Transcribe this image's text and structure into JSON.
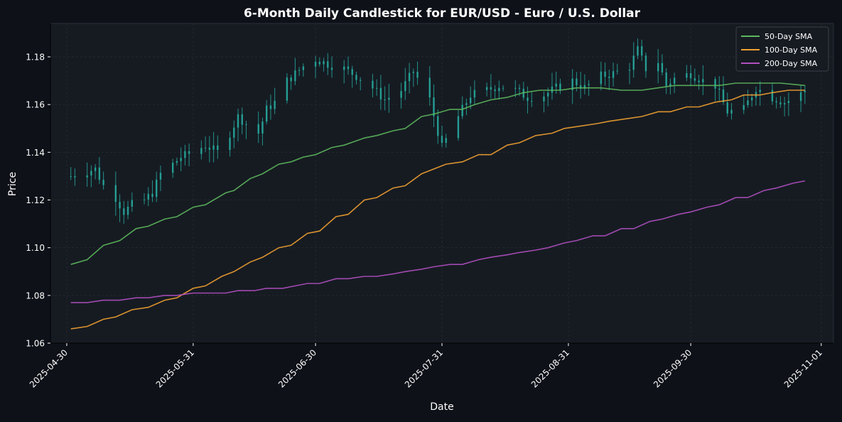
{
  "chart_data": {
    "type": "candlestick",
    "title": "6-Month Daily Candlestick for EUR/USD - Euro / U.S. Dollar",
    "xlabel": "Date",
    "ylabel": "Price",
    "xlim": [
      "2025-04-26",
      "2025-11-04"
    ],
    "ylim": [
      1.06,
      1.194
    ],
    "x_ticks": [
      "2025-04-30",
      "2025-05-31",
      "2025-06-30",
      "2025-07-31",
      "2025-08-31",
      "2025-09-30",
      "2025-11-01"
    ],
    "y_ticks": [
      1.06,
      1.08,
      1.1,
      1.12,
      1.14,
      1.16,
      1.18
    ],
    "y_tick_labels": [
      "1.06",
      "1.08",
      "1.10",
      "1.12",
      "1.14",
      "1.16",
      "1.18"
    ],
    "grid": true,
    "legend_position": "top-right",
    "colors": {
      "background": "#0e1118",
      "plot_background": "#161b22",
      "candle": "#26a69a",
      "sma50": "#5cb85c",
      "sma100": "#f0a030",
      "sma200": "#b04fc0",
      "text": "#ffffff"
    },
    "candles_start": "2025-05-01",
    "candles_end": "2025-10-28",
    "candles_close_path": [
      [
        "2025-05-01",
        1.13
      ],
      [
        "2025-05-07",
        1.133
      ],
      [
        "2025-05-09",
        1.126
      ],
      [
        "2025-05-12",
        1.121
      ],
      [
        "2025-05-14",
        1.115
      ],
      [
        "2025-05-16",
        1.118
      ],
      [
        "2025-05-19",
        1.12
      ],
      [
        "2025-05-21",
        1.123
      ],
      [
        "2025-05-23",
        1.131
      ],
      [
        "2025-05-26",
        1.135
      ],
      [
        "2025-05-28",
        1.138
      ],
      [
        "2025-05-31",
        1.14
      ],
      [
        "2025-06-03",
        1.143
      ],
      [
        "2025-06-06",
        1.14
      ],
      [
        "2025-06-09",
        1.148
      ],
      [
        "2025-06-11",
        1.155
      ],
      [
        "2025-06-13",
        1.152
      ],
      [
        "2025-06-16",
        1.148
      ],
      [
        "2025-06-18",
        1.158
      ],
      [
        "2025-06-20",
        1.161
      ],
      [
        "2025-06-23",
        1.17
      ],
      [
        "2025-06-27",
        1.176
      ],
      [
        "2025-06-30",
        1.179
      ],
      [
        "2025-07-03",
        1.177
      ],
      [
        "2025-07-07",
        1.175
      ],
      [
        "2025-07-10",
        1.172
      ],
      [
        "2025-07-14",
        1.167
      ],
      [
        "2025-07-17",
        1.162
      ],
      [
        "2025-07-21",
        1.166
      ],
      [
        "2025-07-24",
        1.174
      ],
      [
        "2025-07-28",
        1.162
      ],
      [
        "2025-07-31",
        1.142
      ],
      [
        "2025-08-04",
        1.155
      ],
      [
        "2025-08-07",
        1.164
      ],
      [
        "2025-08-11",
        1.166
      ],
      [
        "2025-08-14",
        1.168
      ],
      [
        "2025-08-18",
        1.166
      ],
      [
        "2025-08-21",
        1.163
      ],
      [
        "2025-08-25",
        1.164
      ],
      [
        "2025-08-28",
        1.167
      ],
      [
        "2025-09-01",
        1.17
      ],
      [
        "2025-09-04",
        1.167
      ],
      [
        "2025-09-08",
        1.172
      ],
      [
        "2025-09-11",
        1.173
      ],
      [
        "2025-09-15",
        1.176
      ],
      [
        "2025-09-17",
        1.183
      ],
      [
        "2025-09-19",
        1.175
      ],
      [
        "2025-09-22",
        1.178
      ],
      [
        "2025-09-24",
        1.168
      ],
      [
        "2025-09-26",
        1.171
      ],
      [
        "2025-09-30",
        1.173
      ],
      [
        "2025-10-03",
        1.17
      ],
      [
        "2025-10-06",
        1.168
      ],
      [
        "2025-10-09",
        1.157
      ],
      [
        "2025-10-13",
        1.158
      ],
      [
        "2025-10-16",
        1.167
      ],
      [
        "2025-10-20",
        1.163
      ],
      [
        "2025-10-23",
        1.161
      ],
      [
        "2025-10-26",
        1.163
      ],
      [
        "2025-10-28",
        1.166
      ]
    ],
    "series": [
      {
        "name": "50-Day SMA",
        "color": "#5cb85c",
        "points": [
          [
            "2025-05-01",
            1.093
          ],
          [
            "2025-05-05",
            1.095
          ],
          [
            "2025-05-09",
            1.101
          ],
          [
            "2025-05-13",
            1.103
          ],
          [
            "2025-05-17",
            1.108
          ],
          [
            "2025-05-20",
            1.109
          ],
          [
            "2025-05-24",
            1.112
          ],
          [
            "2025-05-27",
            1.113
          ],
          [
            "2025-05-31",
            1.117
          ],
          [
            "2025-06-03",
            1.118
          ],
          [
            "2025-06-08",
            1.123
          ],
          [
            "2025-06-10",
            1.124
          ],
          [
            "2025-06-14",
            1.129
          ],
          [
            "2025-06-17",
            1.131
          ],
          [
            "2025-06-21",
            1.135
          ],
          [
            "2025-06-24",
            1.136
          ],
          [
            "2025-06-27",
            1.138
          ],
          [
            "2025-06-30",
            1.139
          ],
          [
            "2025-07-04",
            1.142
          ],
          [
            "2025-07-07",
            1.143
          ],
          [
            "2025-07-12",
            1.146
          ],
          [
            "2025-07-15",
            1.147
          ],
          [
            "2025-07-19",
            1.149
          ],
          [
            "2025-07-22",
            1.15
          ],
          [
            "2025-07-26",
            1.155
          ],
          [
            "2025-07-29",
            1.156
          ],
          [
            "2025-08-02",
            1.158
          ],
          [
            "2025-08-05",
            1.158
          ],
          [
            "2025-08-08",
            1.16
          ],
          [
            "2025-08-12",
            1.162
          ],
          [
            "2025-08-16",
            1.163
          ],
          [
            "2025-08-20",
            1.165
          ],
          [
            "2025-08-24",
            1.166
          ],
          [
            "2025-08-29",
            1.166
          ],
          [
            "2025-09-02",
            1.167
          ],
          [
            "2025-09-08",
            1.167
          ],
          [
            "2025-09-13",
            1.166
          ],
          [
            "2025-09-18",
            1.166
          ],
          [
            "2025-09-22",
            1.167
          ],
          [
            "2025-09-26",
            1.168
          ],
          [
            "2025-10-01",
            1.168
          ],
          [
            "2025-10-07",
            1.168
          ],
          [
            "2025-10-11",
            1.169
          ],
          [
            "2025-10-17",
            1.169
          ],
          [
            "2025-10-22",
            1.169
          ],
          [
            "2025-10-28",
            1.168
          ]
        ]
      },
      {
        "name": "100-Day SMA",
        "color": "#f0a030",
        "points": [
          [
            "2025-05-01",
            1.066
          ],
          [
            "2025-05-05",
            1.067
          ],
          [
            "2025-05-09",
            1.07
          ],
          [
            "2025-05-12",
            1.071
          ],
          [
            "2025-05-16",
            1.074
          ],
          [
            "2025-05-20",
            1.075
          ],
          [
            "2025-05-24",
            1.078
          ],
          [
            "2025-05-27",
            1.079
          ],
          [
            "2025-05-31",
            1.083
          ],
          [
            "2025-06-03",
            1.084
          ],
          [
            "2025-06-07",
            1.088
          ],
          [
            "2025-06-10",
            1.09
          ],
          [
            "2025-06-14",
            1.094
          ],
          [
            "2025-06-17",
            1.096
          ],
          [
            "2025-06-21",
            1.1
          ],
          [
            "2025-06-24",
            1.101
          ],
          [
            "2025-06-28",
            1.106
          ],
          [
            "2025-07-01",
            1.107
          ],
          [
            "2025-07-05",
            1.113
          ],
          [
            "2025-07-08",
            1.114
          ],
          [
            "2025-07-12",
            1.12
          ],
          [
            "2025-07-15",
            1.121
          ],
          [
            "2025-07-19",
            1.125
          ],
          [
            "2025-07-22",
            1.126
          ],
          [
            "2025-07-26",
            1.131
          ],
          [
            "2025-07-29",
            1.133
          ],
          [
            "2025-08-01",
            1.135
          ],
          [
            "2025-08-05",
            1.136
          ],
          [
            "2025-08-09",
            1.139
          ],
          [
            "2025-08-12",
            1.139
          ],
          [
            "2025-08-16",
            1.143
          ],
          [
            "2025-08-19",
            1.144
          ],
          [
            "2025-08-23",
            1.147
          ],
          [
            "2025-08-27",
            1.148
          ],
          [
            "2025-08-30",
            1.15
          ],
          [
            "2025-09-03",
            1.151
          ],
          [
            "2025-09-07",
            1.152
          ],
          [
            "2025-09-10",
            1.153
          ],
          [
            "2025-09-14",
            1.154
          ],
          [
            "2025-09-18",
            1.155
          ],
          [
            "2025-09-22",
            1.157
          ],
          [
            "2025-09-25",
            1.157
          ],
          [
            "2025-09-29",
            1.159
          ],
          [
            "2025-10-02",
            1.159
          ],
          [
            "2025-10-06",
            1.161
          ],
          [
            "2025-10-10",
            1.162
          ],
          [
            "2025-10-13",
            1.164
          ],
          [
            "2025-10-17",
            1.164
          ],
          [
            "2025-10-20",
            1.165
          ],
          [
            "2025-10-24",
            1.166
          ],
          [
            "2025-10-28",
            1.166
          ]
        ]
      },
      {
        "name": "200-Day SMA",
        "color": "#b04fc0",
        "points": [
          [
            "2025-05-01",
            1.077
          ],
          [
            "2025-05-05",
            1.077
          ],
          [
            "2025-05-09",
            1.078
          ],
          [
            "2025-05-13",
            1.078
          ],
          [
            "2025-05-17",
            1.079
          ],
          [
            "2025-05-20",
            1.079
          ],
          [
            "2025-05-24",
            1.08
          ],
          [
            "2025-05-27",
            1.08
          ],
          [
            "2025-05-31",
            1.081
          ],
          [
            "2025-06-03",
            1.081
          ],
          [
            "2025-06-08",
            1.081
          ],
          [
            "2025-06-11",
            1.082
          ],
          [
            "2025-06-15",
            1.082
          ],
          [
            "2025-06-18",
            1.083
          ],
          [
            "2025-06-22",
            1.083
          ],
          [
            "2025-06-25",
            1.084
          ],
          [
            "2025-06-28",
            1.085
          ],
          [
            "2025-07-01",
            1.085
          ],
          [
            "2025-07-05",
            1.087
          ],
          [
            "2025-07-08",
            1.087
          ],
          [
            "2025-07-12",
            1.088
          ],
          [
            "2025-07-15",
            1.088
          ],
          [
            "2025-07-19",
            1.089
          ],
          [
            "2025-07-22",
            1.09
          ],
          [
            "2025-07-26",
            1.091
          ],
          [
            "2025-07-29",
            1.092
          ],
          [
            "2025-08-02",
            1.093
          ],
          [
            "2025-08-05",
            1.093
          ],
          [
            "2025-08-09",
            1.095
          ],
          [
            "2025-08-12",
            1.096
          ],
          [
            "2025-08-16",
            1.097
          ],
          [
            "2025-08-19",
            1.098
          ],
          [
            "2025-08-23",
            1.099
          ],
          [
            "2025-08-26",
            1.1
          ],
          [
            "2025-08-30",
            1.102
          ],
          [
            "2025-09-02",
            1.103
          ],
          [
            "2025-09-06",
            1.105
          ],
          [
            "2025-09-09",
            1.105
          ],
          [
            "2025-09-13",
            1.108
          ],
          [
            "2025-09-16",
            1.108
          ],
          [
            "2025-09-20",
            1.111
          ],
          [
            "2025-09-23",
            1.112
          ],
          [
            "2025-09-27",
            1.114
          ],
          [
            "2025-09-30",
            1.115
          ],
          [
            "2025-10-04",
            1.117
          ],
          [
            "2025-10-07",
            1.118
          ],
          [
            "2025-10-11",
            1.121
          ],
          [
            "2025-10-14",
            1.121
          ],
          [
            "2025-10-18",
            1.124
          ],
          [
            "2025-10-21",
            1.125
          ],
          [
            "2025-10-25",
            1.127
          ],
          [
            "2025-10-28",
            1.128
          ]
        ]
      }
    ]
  }
}
